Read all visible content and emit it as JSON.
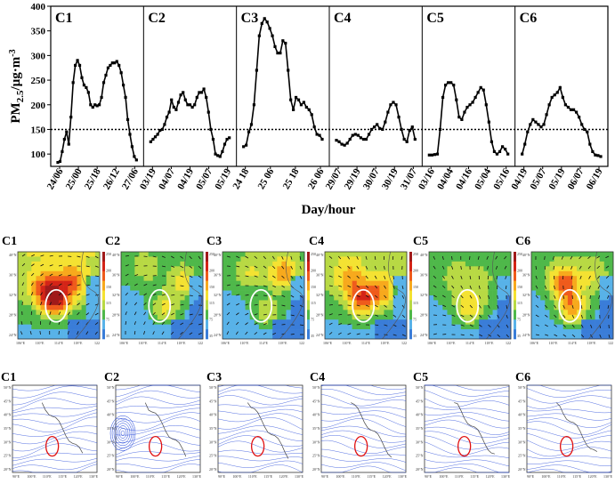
{
  "chart_data": {
    "type": "line",
    "ylabel": "PM",
    "ylabel_sub": "2.5",
    "ylabel_unit": "/µg·m",
    "ylabel_sup": "-3",
    "xlabel": "Day/hour",
    "ylim": [
      75,
      400
    ],
    "yticks": [
      "100",
      "150",
      "200",
      "250",
      "300",
      "350",
      "400"
    ],
    "threshold": 150,
    "line_color": "#000000",
    "panels": [
      {
        "name": "C1",
        "ticks": [
          "24/06",
          "25/00",
          "25/18",
          "26/12",
          "27/06"
        ],
        "values": [
          83,
          85,
          105,
          130,
          145,
          120,
          175,
          245,
          280,
          290,
          280,
          255,
          240,
          235,
          225,
          200,
          195,
          200,
          198,
          200,
          215,
          245,
          260,
          275,
          280,
          285,
          285,
          288,
          280,
          265,
          240,
          215,
          170,
          140,
          115,
          95,
          88
        ]
      },
      {
        "name": "C2",
        "ticks": [
          "03/19",
          "04/07",
          "04/19",
          "05/07",
          "05/19"
        ],
        "values": [
          125,
          130,
          135,
          140,
          148,
          150,
          160,
          175,
          185,
          210,
          195,
          190,
          205,
          220,
          225,
          210,
          200,
          200,
          195,
          200,
          215,
          225,
          225,
          232,
          215,
          185,
          150,
          130,
          100,
          97,
          95,
          105,
          120,
          130,
          133
        ]
      },
      {
        "name": "C3",
        "ticks": [
          "24 18",
          "25 06",
          "25 18",
          "26 06"
        ],
        "values": [
          115,
          118,
          145,
          160,
          200,
          270,
          340,
          365,
          375,
          368,
          355,
          340,
          318,
          305,
          305,
          330,
          325,
          270,
          210,
          190,
          215,
          210,
          200,
          205,
          195,
          190,
          180,
          155,
          140,
          138,
          130
        ]
      },
      {
        "name": "C4",
        "ticks": [
          "29/07",
          "29/19",
          "30/07",
          "30/19",
          "31/07"
        ],
        "values": [
          128,
          125,
          120,
          118,
          122,
          130,
          138,
          140,
          138,
          133,
          130,
          130,
          140,
          150,
          155,
          160,
          152,
          150,
          165,
          185,
          200,
          205,
          200,
          175,
          150,
          130,
          125,
          148,
          155,
          130
        ]
      },
      {
        "name": "C5",
        "ticks": [
          "03/16",
          "04/04",
          "04/16",
          "05/04",
          "05/16"
        ],
        "values": [
          98,
          98,
          99,
          100,
          150,
          215,
          240,
          245,
          245,
          240,
          210,
          175,
          170,
          185,
          195,
          200,
          205,
          215,
          225,
          235,
          230,
          200,
          165,
          125,
          105,
          100,
          105,
          115,
          110,
          100
        ]
      },
      {
        "name": "C6",
        "ticks": [
          "04/19",
          "05/07",
          "05/19",
          "06/07",
          "06/19"
        ],
        "values": [
          100,
          120,
          145,
          160,
          170,
          165,
          160,
          155,
          160,
          180,
          200,
          215,
          220,
          225,
          235,
          215,
          200,
          195,
          190,
          190,
          185,
          175,
          160,
          150,
          145,
          120,
          105,
          98,
          97,
          95
        ]
      }
    ],
    "map_row1_labels": [
      "C1",
      "C2",
      "C3",
      "C4",
      "C5",
      "C6"
    ],
    "map_row2_labels": [
      "C1",
      "C2",
      "C3",
      "C4",
      "C5",
      "C6"
    ],
    "map_lat_ticks": [
      "40°N",
      "36°N",
      "32°N",
      "28°N",
      "24°N"
    ],
    "map_lon_ticks": [
      "106°E",
      "110°E",
      "114°E",
      "118°E",
      "122"
    ],
    "map_colorbar": [
      "250",
      "200",
      "150",
      "115",
      "75",
      "35"
    ],
    "map2_lat_ticks": [
      "50°N",
      "45°N",
      "40°N",
      "35°N",
      "30°N",
      "25°N",
      "20°N"
    ],
    "map2_lon_ticks": [
      "90°E",
      "100°E",
      "110°E",
      "115°E",
      "120°E",
      "130°E"
    ],
    "colors": {
      "map_scale": [
        "#3a7dd8",
        "#58b2e8",
        "#4fb84a",
        "#b8d944",
        "#f4e232",
        "#f7a91d",
        "#ef5b1c",
        "#d42417",
        "#a01a1a"
      ],
      "ellipse_row1": "#ffffff",
      "ellipse_row2": "#e01010",
      "contour": "#1a3fd8"
    }
  }
}
